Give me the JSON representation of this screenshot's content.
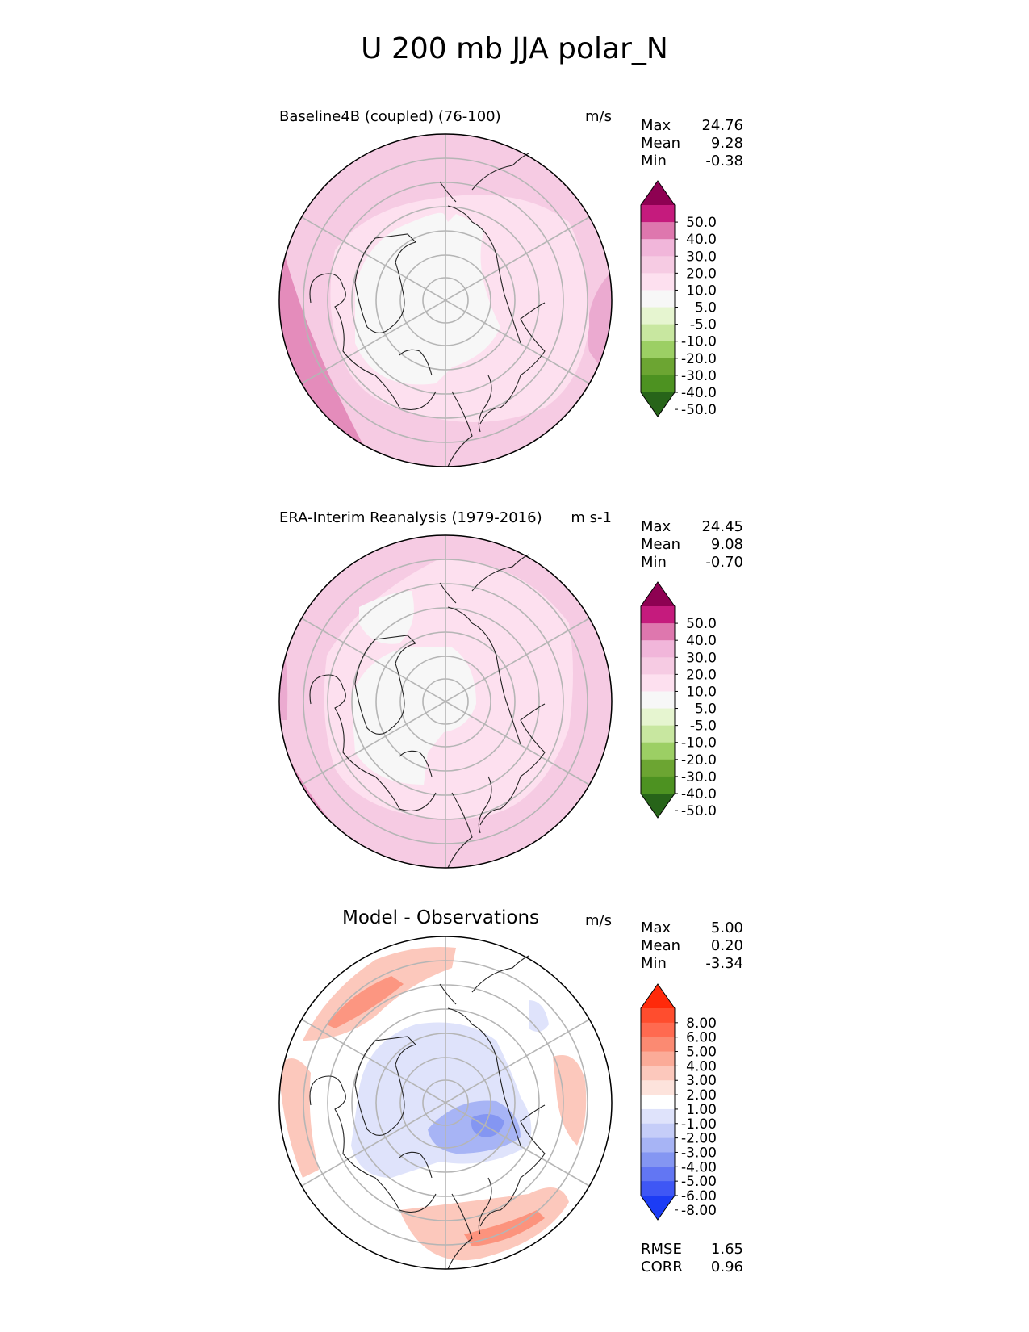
{
  "figure_title": "U 200 mb JJA polar_N",
  "panels": [
    {
      "title": "Baseline4B (coupled) (76-100)",
      "units": "m/s",
      "stats": [
        {
          "label": "Max",
          "value": "24.76"
        },
        {
          "label": "Mean",
          "value": "9.28"
        },
        {
          "label": "Min",
          "value": "-0.38"
        }
      ]
    },
    {
      "title": "ERA-Interim Reanalysis (1979-2016)",
      "units": "m s-1",
      "stats": [
        {
          "label": "Max",
          "value": "24.45"
        },
        {
          "label": "Mean",
          "value": "9.08"
        },
        {
          "label": "Min",
          "value": "-0.70"
        }
      ]
    },
    {
      "title": "Model - Observations",
      "units": "m/s",
      "stats": [
        {
          "label": "Max",
          "value": "5.00"
        },
        {
          "label": "Mean",
          "value": "0.20"
        },
        {
          "label": "Min",
          "value": "-3.34"
        }
      ],
      "metrics": [
        {
          "label": "RMSE",
          "value": "1.65"
        },
        {
          "label": "CORR",
          "value": "0.96"
        }
      ]
    }
  ],
  "chart_data": [
    {
      "type": "heatmap",
      "projection": "north-polar-stereographic",
      "title": "Baseline4B (coupled) (76-100)",
      "units": "m/s",
      "colorbar": {
        "levels": [
          "50.0",
          "40.0",
          "30.0",
          "20.0",
          "10.0",
          "5.0",
          "-5.0",
          "-10.0",
          "-20.0",
          "-30.0",
          "-40.0",
          "-50.0"
        ],
        "colors": [
          "#8e0152",
          "#c51b7d",
          "#de77ae",
          "#f1b6da",
          "#f6cbe3",
          "#fde0ef",
          "#f7f7f7",
          "#e6f5d0",
          "#c8e7a0",
          "#9ccf64",
          "#6ca532",
          "#4d9221",
          "#276419"
        ]
      }
    },
    {
      "type": "heatmap",
      "projection": "north-polar-stereographic",
      "title": "ERA-Interim Reanalysis (1979-2016)",
      "units": "m s-1",
      "colorbar": {
        "levels": [
          "50.0",
          "40.0",
          "30.0",
          "20.0",
          "10.0",
          "5.0",
          "-5.0",
          "-10.0",
          "-20.0",
          "-30.0",
          "-40.0",
          "-50.0"
        ],
        "colors": [
          "#8e0152",
          "#c51b7d",
          "#de77ae",
          "#f1b6da",
          "#f6cbe3",
          "#fde0ef",
          "#f7f7f7",
          "#e6f5d0",
          "#c8e7a0",
          "#9ccf64",
          "#6ca532",
          "#4d9221",
          "#276419"
        ]
      }
    },
    {
      "type": "heatmap",
      "projection": "north-polar-stereographic",
      "title": "Model - Observations",
      "units": "m/s",
      "colorbar": {
        "levels": [
          "8.00",
          "6.00",
          "5.00",
          "4.00",
          "3.00",
          "2.00",
          "1.00",
          "-1.00",
          "-2.00",
          "-3.00",
          "-4.00",
          "-5.00",
          "-6.00",
          "-8.00"
        ],
        "colors": [
          "#ff2a0a",
          "#ff4d2e",
          "#ff6a50",
          "#fb8a72",
          "#fbab98",
          "#fcc8bc",
          "#fde3dc",
          "#ffffff",
          "#dfe3fb",
          "#c5cdf8",
          "#a7b4f5",
          "#8496f2",
          "#6276f3",
          "#3f57f5",
          "#1c3cf5"
        ]
      }
    }
  ]
}
